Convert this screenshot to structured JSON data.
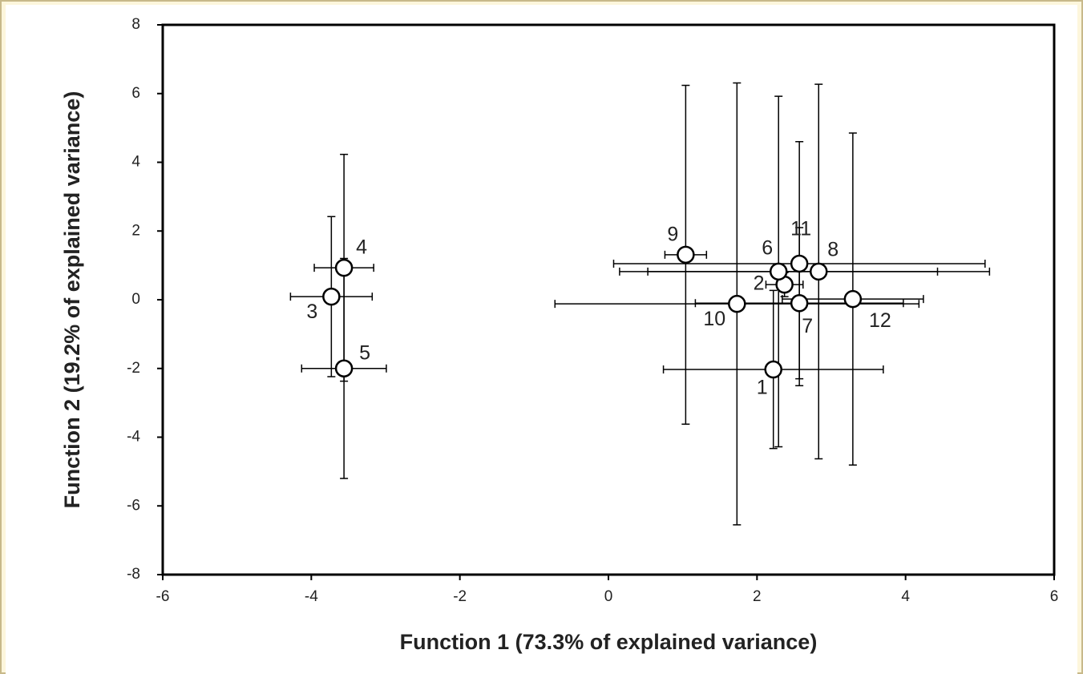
{
  "chart_data": {
    "type": "scatter",
    "xlabel": "Function 1 (73.3% of explained variance)",
    "ylabel": "Function 2 (19.2% of explained variance)",
    "xlim": [
      -6,
      6
    ],
    "xticks": [
      -6,
      -4,
      -2,
      0,
      2,
      4,
      6
    ],
    "ylim": [
      -8,
      8
    ],
    "yticks": [
      -8,
      -6,
      -4,
      -2,
      0,
      2,
      4,
      6,
      8
    ],
    "grid": false,
    "series": [
      {
        "color": "#ffffff",
        "labels": [
          "1",
          "2",
          "3",
          "4",
          "5",
          "6",
          "7",
          "8",
          "9",
          "10",
          "11",
          "12"
        ],
        "x": [
          2.22,
          2.37,
          -3.73,
          -3.56,
          -3.56,
          2.29,
          2.57,
          2.83,
          1.04,
          1.73,
          2.57,
          3.29
        ],
        "values": [
          -2.03,
          0.44,
          0.09,
          0.93,
          -2.0,
          0.82,
          -0.1,
          0.82,
          1.31,
          -0.12,
          1.05,
          0.02
        ],
        "x_errors": [
          1.48,
          0.25,
          0.55,
          0.4,
          0.57,
          2.14,
          1.4,
          2.3,
          0.28,
          2.45,
          2.5,
          0.95
        ],
        "y_errors": [
          2.3,
          0.35,
          2.33,
          3.3,
          3.2,
          5.1,
          2.2,
          5.45,
          4.93,
          6.43,
          3.55,
          4.83
        ]
      }
    ]
  }
}
